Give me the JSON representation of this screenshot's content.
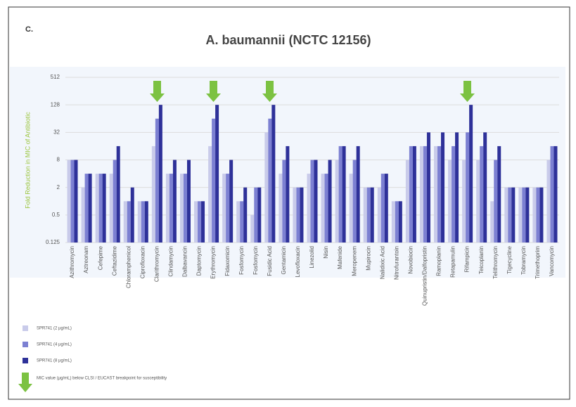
{
  "chart_data": {
    "type": "bar",
    "panel_label": "C.",
    "title": "A. baumannii (NCTC 12156)",
    "y_label": "Fold Reduction in MIC of Antibiotic",
    "categories": [
      "Azithromycin",
      "Aztreonam",
      "Cefepime",
      "Ceftazidime",
      "Chloramphenicol",
      "Ciprofloxacin",
      "Clarithromycin",
      "Clindamycin",
      "Dalbavancin",
      "Daptomycin",
      "Erythromycin",
      "Fidaxomicin",
      "Fosfomycin",
      "Fosfomycin",
      "Fusidic Acid",
      "Gentamicin",
      "Levofloxacin",
      "Linezolid",
      "Nisin",
      "Mafenide",
      "Meropenem",
      "Mupirocin",
      "Nalidixic Acid",
      "Nitrofurantoin",
      "Novobiocin",
      "Quinupristin/Dalfopristin",
      "Ramoplanin",
      "Retapamulin",
      "Rifampicin",
      "Teicoplanin",
      "Telithromycin",
      "Tigecycline",
      "Tobramycin",
      "Trimethoprim",
      "Vancomycin"
    ],
    "series": [
      {
        "name": "SPR741 (2 µg/mL)",
        "color": "#c9cbea",
        "values": [
          8,
          2,
          4,
          4,
          1,
          1,
          16,
          4,
          4,
          1,
          16,
          4,
          1,
          0.5,
          32,
          4,
          2,
          4,
          4,
          8,
          4,
          2,
          2,
          1,
          8,
          16,
          16,
          8,
          8,
          8,
          1,
          2,
          2,
          2,
          8
        ]
      },
      {
        "name": "SPR741 (4 µg/mL)",
        "color": "#7c80d2",
        "values": [
          8,
          4,
          4,
          8,
          1,
          1,
          64,
          4,
          4,
          1,
          64,
          4,
          1,
          2,
          64,
          8,
          2,
          8,
          4,
          16,
          8,
          2,
          4,
          1,
          16,
          16,
          16,
          16,
          32,
          16,
          8,
          2,
          2,
          2,
          16
        ]
      },
      {
        "name": "SPR741 (8 µg/mL)",
        "color": "#2e3199",
        "values": [
          8,
          4,
          4,
          16,
          2,
          1,
          128,
          8,
          8,
          1,
          128,
          8,
          2,
          2,
          128,
          16,
          2,
          8,
          8,
          16,
          16,
          2,
          4,
          1,
          16,
          32,
          32,
          32,
          128,
          32,
          16,
          2,
          2,
          2,
          16
        ]
      }
    ],
    "legend_note": "MIC value (µg/mL) below CLSI / EUCAST breakpoint for susceptibility",
    "ylim": [
      0.125,
      512
    ],
    "yticks": [
      512,
      128,
      32,
      8,
      2,
      0.5,
      0.125
    ],
    "log_scale": true,
    "grid": true
  }
}
